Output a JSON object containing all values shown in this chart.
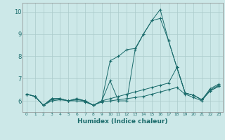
{
  "xlabel": "Humidex (Indice chaleur)",
  "background_color": "#cce8e8",
  "grid_color": "#aacaca",
  "line_color": "#1a6b6b",
  "x_ticks": [
    0,
    1,
    2,
    3,
    4,
    5,
    6,
    7,
    8,
    9,
    10,
    11,
    12,
    13,
    14,
    15,
    16,
    17,
    18,
    19,
    20,
    21,
    22,
    23
  ],
  "y_ticks": [
    6,
    7,
    8,
    9,
    10
  ],
  "ylim": [
    5.5,
    10.4
  ],
  "xlim": [
    -0.5,
    23.5
  ],
  "series": [
    [
      6.3,
      6.2,
      5.8,
      6.1,
      6.1,
      6.0,
      6.1,
      6.0,
      5.8,
      6.0,
      6.9,
      6.0,
      6.0,
      8.3,
      9.0,
      9.6,
      10.1,
      8.7,
      7.5,
      6.35,
      6.25,
      6.05,
      6.45,
      6.65
    ],
    [
      6.3,
      6.2,
      5.8,
      6.1,
      6.1,
      6.0,
      6.1,
      6.0,
      5.8,
      6.0,
      7.8,
      8.0,
      8.3,
      8.35,
      9.0,
      9.6,
      9.7,
      8.7,
      7.5,
      6.35,
      6.25,
      6.05,
      6.45,
      6.65
    ],
    [
      6.3,
      6.2,
      5.8,
      6.05,
      6.1,
      6.0,
      6.05,
      6.0,
      5.8,
      6.0,
      6.1,
      6.2,
      6.3,
      6.4,
      6.5,
      6.6,
      6.7,
      6.8,
      7.5,
      6.35,
      6.25,
      6.05,
      6.55,
      6.75
    ],
    [
      6.3,
      6.2,
      5.8,
      6.0,
      6.05,
      6.0,
      6.0,
      5.95,
      5.8,
      5.95,
      6.0,
      6.05,
      6.1,
      6.15,
      6.2,
      6.3,
      6.4,
      6.5,
      6.6,
      6.3,
      6.15,
      6.0,
      6.5,
      6.7
    ]
  ]
}
